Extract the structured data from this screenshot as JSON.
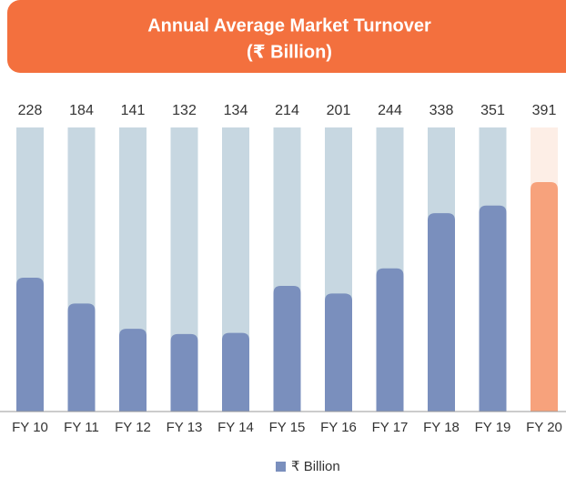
{
  "chart_data": {
    "type": "bar",
    "title": "Annual Average Market Turnover",
    "subtitle": "(₹ Billion)",
    "categories": [
      "FY 10",
      "FY 11",
      "FY 12",
      "FY 13",
      "FY 14",
      "FY 15",
      "FY 16",
      "FY 17",
      "FY 18",
      "FY 19",
      "FY 20"
    ],
    "series": [
      {
        "name": "₹ Billion",
        "color": "#7a8fbd",
        "values": [
          228,
          184,
          141,
          132,
          134,
          214,
          201,
          244,
          338,
          351,
          391
        ]
      }
    ],
    "colors": [
      "#7a8fbd",
      "#7a8fbd",
      "#7a8fbd",
      "#7a8fbd",
      "#7a8fbd",
      "#7a8fbd",
      "#7a8fbd",
      "#7a8fbd",
      "#7a8fbd",
      "#7a8fbd",
      "#f7a27c"
    ],
    "track_colors": [
      "#c7d7e1",
      "#c7d7e1",
      "#c7d7e1",
      "#c7d7e1",
      "#c7d7e1",
      "#c7d7e1",
      "#c7d7e1",
      "#c7d7e1",
      "#c7d7e1",
      "#c7d7e1",
      "#fdeee6"
    ],
    "ylim": [
      0,
      484
    ]
  }
}
